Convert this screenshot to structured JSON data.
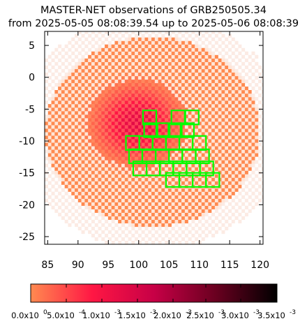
{
  "title_line1": "MASTER-NET observations of GRB250505.34",
  "title_line2": "from 2025-05-05 08:08:39.54 up to 2025-05-06 08:08:39",
  "chart_data": {
    "type": "heatmap",
    "title": "MASTER-NET observations of GRB250505.34",
    "subtitle": "from 2025-05-05 08:08:39.54 up to 2025-05-06 08:08:39",
    "xlabel": "",
    "ylabel": "",
    "xlim": [
      84.5,
      120.5
    ],
    "ylim": [
      -26.2,
      7.2
    ],
    "x_ticks": [
      85,
      90,
      95,
      100,
      105,
      110,
      115,
      120
    ],
    "y_ticks": [
      5,
      0,
      -5,
      -10,
      -15,
      -20,
      -25
    ],
    "probability_region": {
      "center": [
        102.0,
        -8.8
      ],
      "radius_x": 17.7,
      "radius_y": 14.9,
      "peak": [
        99.5,
        -7.5
      ]
    },
    "observed_fields": [
      {
        "ra": 101.8,
        "dec": -6.3,
        "w": 2.2,
        "h": 2.2
      },
      {
        "ra": 106.5,
        "dec": -6.3,
        "w": 2.2,
        "h": 2.2
      },
      {
        "ra": 108.8,
        "dec": -6.3,
        "w": 2.2,
        "h": 2.2
      },
      {
        "ra": 102.0,
        "dec": -8.3,
        "w": 2.2,
        "h": 2.2
      },
      {
        "ra": 104.0,
        "dec": -8.3,
        "w": 2.2,
        "h": 2.2
      },
      {
        "ra": 106.0,
        "dec": -8.3,
        "w": 2.2,
        "h": 2.2
      },
      {
        "ra": 108.0,
        "dec": -8.3,
        "w": 2.2,
        "h": 2.2
      },
      {
        "ra": 99.0,
        "dec": -10.3,
        "w": 2.2,
        "h": 2.2
      },
      {
        "ra": 101.2,
        "dec": -10.3,
        "w": 2.2,
        "h": 2.2
      },
      {
        "ra": 103.4,
        "dec": -10.3,
        "w": 2.2,
        "h": 2.2
      },
      {
        "ra": 105.6,
        "dec": -10.3,
        "w": 2.2,
        "h": 2.2
      },
      {
        "ra": 107.8,
        "dec": -10.3,
        "w": 2.2,
        "h": 2.2
      },
      {
        "ra": 110.0,
        "dec": -10.3,
        "w": 2.2,
        "h": 2.2
      },
      {
        "ra": 99.5,
        "dec": -12.4,
        "w": 2.2,
        "h": 2.2
      },
      {
        "ra": 101.7,
        "dec": -12.4,
        "w": 2.2,
        "h": 2.2
      },
      {
        "ra": 103.9,
        "dec": -12.4,
        "w": 2.2,
        "h": 2.2
      },
      {
        "ra": 106.1,
        "dec": -12.4,
        "w": 2.2,
        "h": 2.2
      },
      {
        "ra": 108.3,
        "dec": -12.4,
        "w": 2.2,
        "h": 2.2
      },
      {
        "ra": 110.5,
        "dec": -12.4,
        "w": 2.2,
        "h": 2.2
      },
      {
        "ra": 100.2,
        "dec": -14.3,
        "w": 2.2,
        "h": 2.2
      },
      {
        "ra": 102.4,
        "dec": -14.3,
        "w": 2.2,
        "h": 2.2
      },
      {
        "ra": 104.6,
        "dec": -14.3,
        "w": 2.2,
        "h": 2.2
      },
      {
        "ra": 106.8,
        "dec": -14.3,
        "w": 2.2,
        "h": 2.2
      },
      {
        "ra": 109.0,
        "dec": -14.3,
        "w": 2.2,
        "h": 2.2
      },
      {
        "ra": 111.2,
        "dec": -14.3,
        "w": 2.2,
        "h": 2.2
      },
      {
        "ra": 105.6,
        "dec": -16.1,
        "w": 2.2,
        "h": 2.2
      },
      {
        "ra": 107.8,
        "dec": -16.1,
        "w": 2.2,
        "h": 2.2
      },
      {
        "ra": 110.0,
        "dec": -16.1,
        "w": 2.2,
        "h": 2.2
      },
      {
        "ra": 112.2,
        "dec": -16.1,
        "w": 2.2,
        "h": 2.2
      }
    ],
    "field_color": "#00ff00",
    "colorbar": {
      "min": 0.0,
      "max": 0.0035,
      "colors": [
        "#ff8a50",
        "#ff1744",
        "#c70046",
        "#6a0020",
        "#000000"
      ],
      "tick_labels": [
        "0.0x10",
        "5.0x10",
        "1.0x10",
        "1.5x10",
        "2.0x10",
        "2.5x10",
        "3.0x10",
        "3.5x10"
      ],
      "tick_exponents": [
        "0",
        "-4",
        "-3",
        "-3",
        "-3",
        "-3",
        "-3",
        "-3"
      ]
    }
  }
}
